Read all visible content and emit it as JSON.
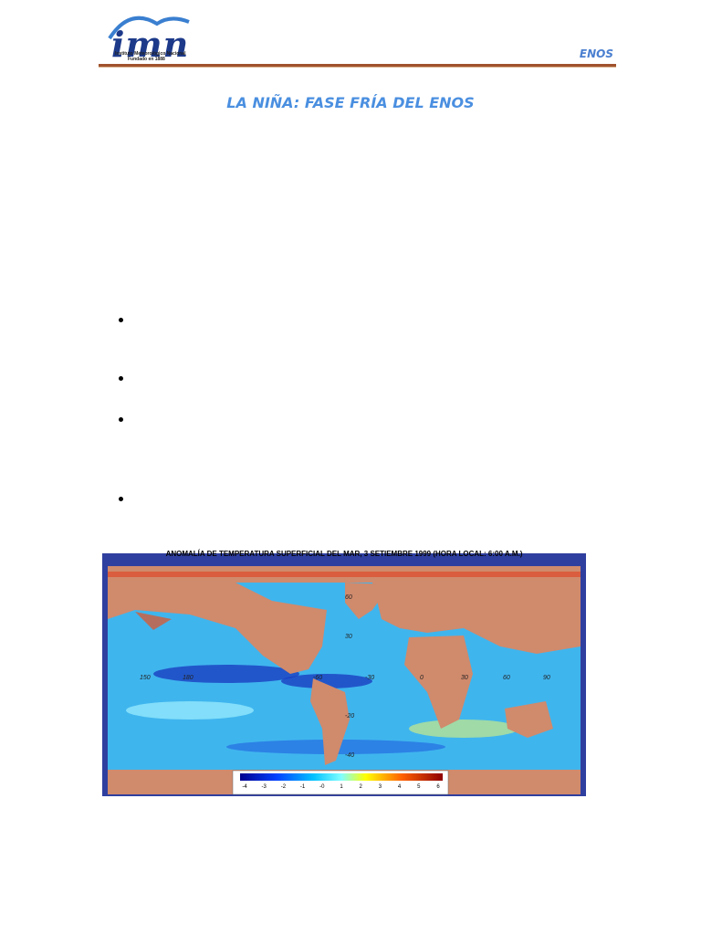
{
  "header": {
    "logo_text": "imn",
    "logo_lines": [
      "Instituto Meteorológico Nacional",
      "Fundado en 1888"
    ],
    "section": "ENOS"
  },
  "title": "LA NIÑA: FASE FRÍA DEL ENOS",
  "figure": {
    "title": "ANOMALÍA DE TEMPERATURA SUPERFICIAL DEL MAR, 3 SETIEMBRE 1999 (HORA LOCAL: 6:00 A.M.)",
    "lat_labels": [
      "60",
      "30",
      "-20",
      "-40"
    ],
    "lon_labels": [
      "150",
      "180",
      "-60",
      "-30",
      "0",
      "30",
      "60",
      "90"
    ],
    "colorbar_labels": [
      "-4",
      "-3",
      "-2",
      "-1",
      "-0",
      "1",
      "2",
      "3",
      "4",
      "5",
      "6"
    ]
  }
}
